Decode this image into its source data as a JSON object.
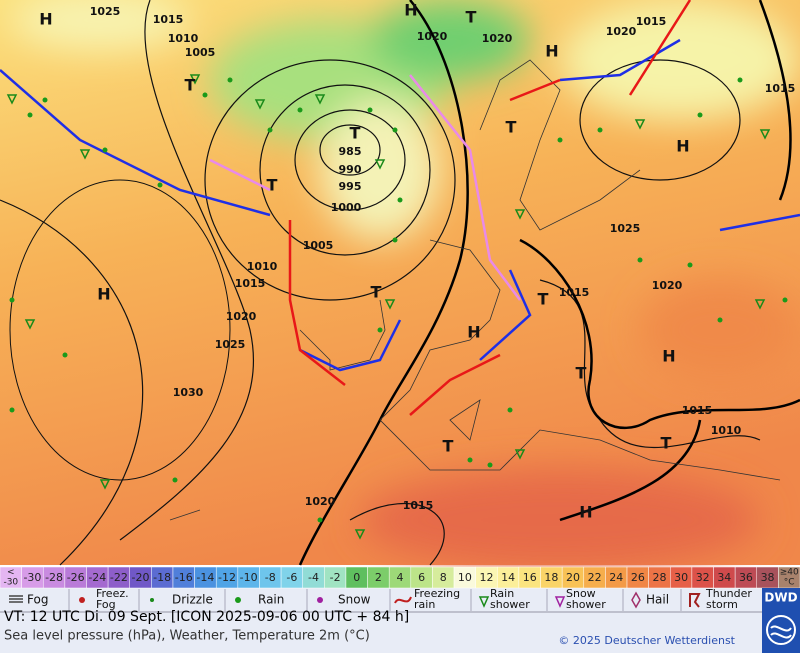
{
  "map": {
    "pressure_labels": [
      "1025",
      "1015",
      "1010",
      "1005",
      "985",
      "990",
      "995",
      "1000",
      "1005",
      "1010",
      "1015",
      "1020",
      "1025",
      "1030",
      "1020",
      "1020",
      "1015",
      "1020",
      "1015",
      "1025",
      "1015",
      "1020",
      "1015",
      "1010",
      "1020",
      "1015"
    ],
    "centers": [
      "H",
      "H",
      "T",
      "H",
      "T",
      "T",
      "T",
      "H",
      "T",
      "H",
      "T",
      "T",
      "H",
      "H",
      "T",
      "T",
      "T",
      "H"
    ]
  },
  "colorbar": [
    {
      "label": [
        "<",
        "-30"
      ],
      "color": "#e4b6f2"
    },
    {
      "label": [
        "-30"
      ],
      "color": "#d79ce8"
    },
    {
      "label": [
        "-28"
      ],
      "color": "#c98be0"
    },
    {
      "label": [
        "-26"
      ],
      "color": "#b97bd8"
    },
    {
      "label": [
        "-24"
      ],
      "color": "#a46ad0"
    },
    {
      "label": [
        "-22"
      ],
      "color": "#8d5ec9"
    },
    {
      "label": [
        "-20"
      ],
      "color": "#7058c7"
    },
    {
      "label": [
        "-18"
      ],
      "color": "#5b6cd2"
    },
    {
      "label": [
        "-16"
      ],
      "color": "#507fda"
    },
    {
      "label": [
        "-14"
      ],
      "color": "#4b92e0"
    },
    {
      "label": [
        "-12"
      ],
      "color": "#50a4e6"
    },
    {
      "label": [
        "-10"
      ],
      "color": "#5db5ea"
    },
    {
      "label": [
        "-8"
      ],
      "color": "#6ec5ec"
    },
    {
      "label": [
        "-6"
      ],
      "color": "#80d3ea"
    },
    {
      "label": [
        "-4"
      ],
      "color": "#91dcd6"
    },
    {
      "label": [
        "-2"
      ],
      "color": "#a0e3c2"
    },
    {
      "label": [
        "0"
      ],
      "color": "#5fbf5f"
    },
    {
      "label": [
        "2"
      ],
      "color": "#7ccd6a"
    },
    {
      "label": [
        "4"
      ],
      "color": "#9dd978"
    },
    {
      "label": [
        "6"
      ],
      "color": "#bce489"
    },
    {
      "label": [
        "8"
      ],
      "color": "#d6ec9c"
    },
    {
      "label": [
        "10"
      ],
      "color": "#fafadc"
    },
    {
      "label": [
        "12"
      ],
      "color": "#fbf6b4"
    },
    {
      "label": [
        "14"
      ],
      "color": "#fcef9a"
    },
    {
      "label": [
        "16"
      ],
      "color": "#fbe47f"
    },
    {
      "label": [
        "18"
      ],
      "color": "#fad468"
    },
    {
      "label": [
        "20"
      ],
      "color": "#f8c256"
    },
    {
      "label": [
        "22"
      ],
      "color": "#f6ae4c"
    },
    {
      "label": [
        "24"
      ],
      "color": "#f39a47"
    },
    {
      "label": [
        "26"
      ],
      "color": "#f08645"
    },
    {
      "label": [
        "28"
      ],
      "color": "#ec7346"
    },
    {
      "label": [
        "30"
      ],
      "color": "#e66048"
    },
    {
      "label": [
        "32"
      ],
      "color": "#dc5249"
    },
    {
      "label": [
        "34"
      ],
      "color": "#cf4a4c"
    },
    {
      "label": [
        "36"
      ],
      "color": "#bd4b55"
    },
    {
      "label": [
        "38"
      ],
      "color": "#a8525c"
    },
    {
      "label": [
        "≥40",
        "°C"
      ],
      "color": "#a8826c"
    }
  ],
  "legend": [
    [
      "Fog"
    ],
    [
      "Freez.",
      "Fog"
    ],
    [
      "Drizzle"
    ],
    [
      "Rain"
    ],
    [
      "Snow"
    ],
    [
      "Freezing",
      "rain"
    ],
    [
      "Rain",
      "shower"
    ],
    [
      "Snow",
      "shower"
    ],
    [
      "Hail"
    ],
    [
      "Thunder",
      "storm"
    ]
  ],
  "footer": {
    "valid_time": "VT: 12 UTC Di.  09 Sept. [ICON 2025-09-06  00 UTC + 84 h]",
    "description": "Sea level pressure (hPa), Weather, Temperature 2m (°C)",
    "copyright": "© 2025 Deutscher Wetterdienst",
    "logo": "DWD"
  }
}
